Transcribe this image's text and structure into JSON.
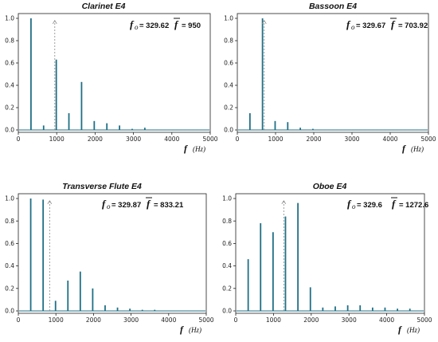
{
  "chart_data": [
    {
      "type": "bar",
      "title": "Clarinet E4",
      "xlabel_symbol": "f",
      "xlabel_unit": "(Hz)",
      "xlim": [
        0,
        5000
      ],
      "ylim": [
        0,
        1.0
      ],
      "x_ticks": [
        0,
        1000,
        2000,
        3000,
        4000,
        5000
      ],
      "y_ticks": [
        0.0,
        0.2,
        0.4,
        0.6,
        0.8,
        1.0
      ],
      "fundamental_symbol": "f",
      "fundamental_subscript": "o",
      "fundamental_value": "= 329.62",
      "centroid_symbol": "f",
      "centroid_value": "= 950",
      "centroid_hz": 950,
      "peaks": [
        {
          "x": 330,
          "y": 1.0
        },
        {
          "x": 659,
          "y": 0.04
        },
        {
          "x": 989,
          "y": 0.63
        },
        {
          "x": 1318,
          "y": 0.15
        },
        {
          "x": 1648,
          "y": 0.43
        },
        {
          "x": 1978,
          "y": 0.08
        },
        {
          "x": 2307,
          "y": 0.06
        },
        {
          "x": 2637,
          "y": 0.04
        },
        {
          "x": 2966,
          "y": 0.01
        },
        {
          "x": 3296,
          "y": 0.02
        }
      ]
    },
    {
      "type": "bar",
      "title": "Bassoon E4",
      "xlabel_symbol": "f",
      "xlabel_unit": "(Hz)",
      "xlim": [
        0,
        5000
      ],
      "ylim": [
        0,
        1.0
      ],
      "x_ticks": [
        0,
        1000,
        2000,
        3000,
        4000,
        5000
      ],
      "y_ticks": [
        0.0,
        0.2,
        0.4,
        0.6,
        0.8,
        1.0
      ],
      "fundamental_symbol": "f",
      "fundamental_subscript": "o",
      "fundamental_value": "= 329.67",
      "centroid_symbol": "f",
      "centroid_value": "= 703.92",
      "centroid_hz": 703.92,
      "peaks": [
        {
          "x": 330,
          "y": 0.15
        },
        {
          "x": 659,
          "y": 1.0
        },
        {
          "x": 989,
          "y": 0.08
        },
        {
          "x": 1319,
          "y": 0.07
        },
        {
          "x": 1648,
          "y": 0.02
        },
        {
          "x": 1978,
          "y": 0.01
        }
      ]
    },
    {
      "type": "bar",
      "title": "Transverse Flute E4",
      "xlabel_symbol": "f",
      "xlabel_unit": "(Hz)",
      "xlim": [
        0,
        5000
      ],
      "ylim": [
        0,
        1.0
      ],
      "x_ticks": [
        0,
        1000,
        2000,
        3000,
        4000,
        5000
      ],
      "y_ticks": [
        0.0,
        0.2,
        0.4,
        0.6,
        0.8,
        1.0
      ],
      "fundamental_symbol": "f",
      "fundamental_subscript": "o",
      "fundamental_value": "= 329.87",
      "centroid_symbol": "f",
      "centroid_value": "= 833.21",
      "centroid_hz": 833.21,
      "peaks": [
        {
          "x": 330,
          "y": 1.0
        },
        {
          "x": 660,
          "y": 0.99
        },
        {
          "x": 990,
          "y": 0.09
        },
        {
          "x": 1319,
          "y": 0.27
        },
        {
          "x": 1649,
          "y": 0.35
        },
        {
          "x": 1979,
          "y": 0.2
        },
        {
          "x": 2309,
          "y": 0.05
        },
        {
          "x": 2639,
          "y": 0.03
        },
        {
          "x": 2969,
          "y": 0.02
        },
        {
          "x": 3299,
          "y": 0.01
        },
        {
          "x": 3629,
          "y": 0.01
        }
      ]
    },
    {
      "type": "bar",
      "title": "Oboe E4",
      "xlabel_symbol": "f",
      "xlabel_unit": "(Hz)",
      "xlim": [
        0,
        5000
      ],
      "ylim": [
        0,
        1.0
      ],
      "x_ticks": [
        0,
        1000,
        2000,
        3000,
        4000,
        5000
      ],
      "y_ticks": [
        0.0,
        0.2,
        0.4,
        0.6,
        0.8,
        1.0
      ],
      "fundamental_symbol": "f",
      "fundamental_subscript": "o",
      "fundamental_value": "= 329.6",
      "centroid_symbol": "f",
      "centroid_value": "= 1272.6",
      "centroid_hz": 1272.6,
      "peaks": [
        {
          "x": 330,
          "y": 0.46
        },
        {
          "x": 659,
          "y": 0.78
        },
        {
          "x": 989,
          "y": 0.7
        },
        {
          "x": 1318,
          "y": 0.84
        },
        {
          "x": 1648,
          "y": 0.96
        },
        {
          "x": 1978,
          "y": 0.21
        },
        {
          "x": 2307,
          "y": 0.03
        },
        {
          "x": 2637,
          "y": 0.04
        },
        {
          "x": 2967,
          "y": 0.05
        },
        {
          "x": 3296,
          "y": 0.05
        },
        {
          "x": 3626,
          "y": 0.03
        },
        {
          "x": 3955,
          "y": 0.03
        },
        {
          "x": 4285,
          "y": 0.02
        },
        {
          "x": 4614,
          "y": 0.02
        }
      ]
    }
  ],
  "colors": {
    "peak": "#1f6f86",
    "centroid_marker": "#888888",
    "axis": "#222222"
  }
}
